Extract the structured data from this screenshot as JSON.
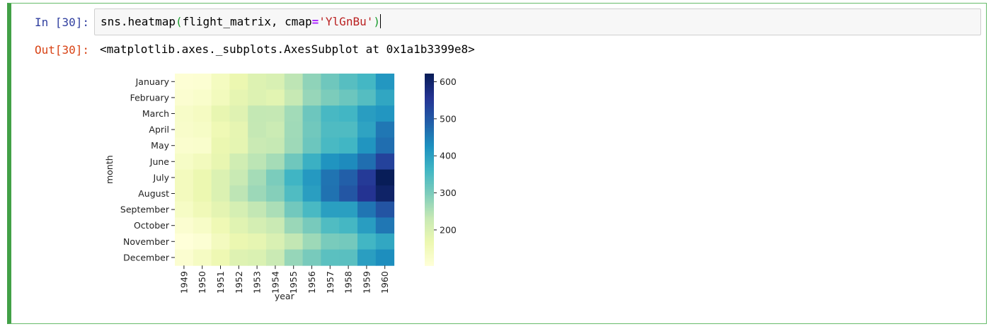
{
  "input_prompt": "In [30]:",
  "output_prompt": "Out[30]:",
  "code": {
    "fn": "sns.heatmap",
    "open_paren": "(",
    "arg1": "flight_matrix, cmap",
    "eq": "=",
    "str": "'YlGnBu'",
    "close_paren": ")"
  },
  "output_repr": "<matplotlib.axes._subplots.AxesSubplot at 0x1a1b3399e8>",
  "colors": {
    "cell_border": "#66bb6a",
    "in_prompt": "#303f9f",
    "out_prompt": "#d84315",
    "input_bg": "#f7f7f7"
  },
  "chart_data": {
    "type": "heatmap",
    "colormap": "YlGnBu",
    "xlabel": "year",
    "ylabel": "month",
    "x": [
      "1949",
      "1950",
      "1951",
      "1952",
      "1953",
      "1954",
      "1955",
      "1956",
      "1957",
      "1958",
      "1959",
      "1960"
    ],
    "y": [
      "January",
      "February",
      "March",
      "April",
      "May",
      "June",
      "July",
      "August",
      "September",
      "October",
      "November",
      "December"
    ],
    "values": [
      [
        112,
        115,
        145,
        171,
        196,
        204,
        242,
        284,
        315,
        340,
        360,
        417
      ],
      [
        118,
        126,
        150,
        180,
        196,
        188,
        233,
        277,
        301,
        318,
        342,
        391
      ],
      [
        132,
        141,
        178,
        193,
        236,
        235,
        267,
        317,
        356,
        362,
        406,
        419
      ],
      [
        129,
        135,
        163,
        181,
        235,
        227,
        269,
        313,
        348,
        348,
        396,
        461
      ],
      [
        121,
        125,
        172,
        183,
        229,
        234,
        270,
        318,
        355,
        363,
        420,
        472
      ],
      [
        135,
        149,
        178,
        218,
        243,
        264,
        315,
        374,
        422,
        435,
        472,
        535
      ],
      [
        148,
        170,
        199,
        230,
        264,
        302,
        364,
        413,
        465,
        491,
        548,
        622
      ],
      [
        148,
        170,
        199,
        242,
        272,
        293,
        347,
        405,
        467,
        505,
        559,
        606
      ],
      [
        136,
        158,
        184,
        209,
        237,
        259,
        312,
        355,
        404,
        404,
        463,
        508
      ],
      [
        119,
        133,
        162,
        191,
        211,
        229,
        274,
        306,
        347,
        359,
        407,
        461
      ],
      [
        104,
        114,
        146,
        172,
        180,
        203,
        237,
        271,
        305,
        310,
        362,
        390
      ],
      [
        118,
        140,
        166,
        194,
        201,
        229,
        278,
        306,
        336,
        337,
        405,
        432
      ]
    ],
    "colorbar_ticks": [
      200,
      300,
      400,
      500,
      600
    ],
    "vmin": 104,
    "vmax": 622
  }
}
